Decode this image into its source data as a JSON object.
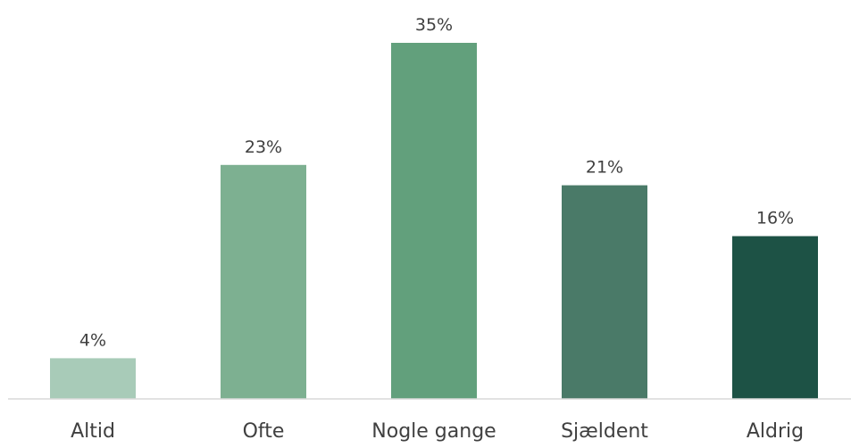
{
  "chart_data": {
    "type": "bar",
    "categories": [
      "Altid",
      "Ofte",
      "Nogle gange",
      "Sjældent",
      "Aldrig"
    ],
    "values": [
      4,
      23,
      35,
      21,
      16
    ],
    "value_labels": [
      "4%",
      "23%",
      "35%",
      "21%",
      "16%"
    ],
    "bar_colors": [
      "#a8cbb8",
      "#7db091",
      "#62a07c",
      "#4a7a68",
      "#1d5245"
    ],
    "ylim": [
      0,
      35
    ],
    "grid": false,
    "legend": "none",
    "title": "",
    "xlabel": "",
    "ylabel": ""
  }
}
